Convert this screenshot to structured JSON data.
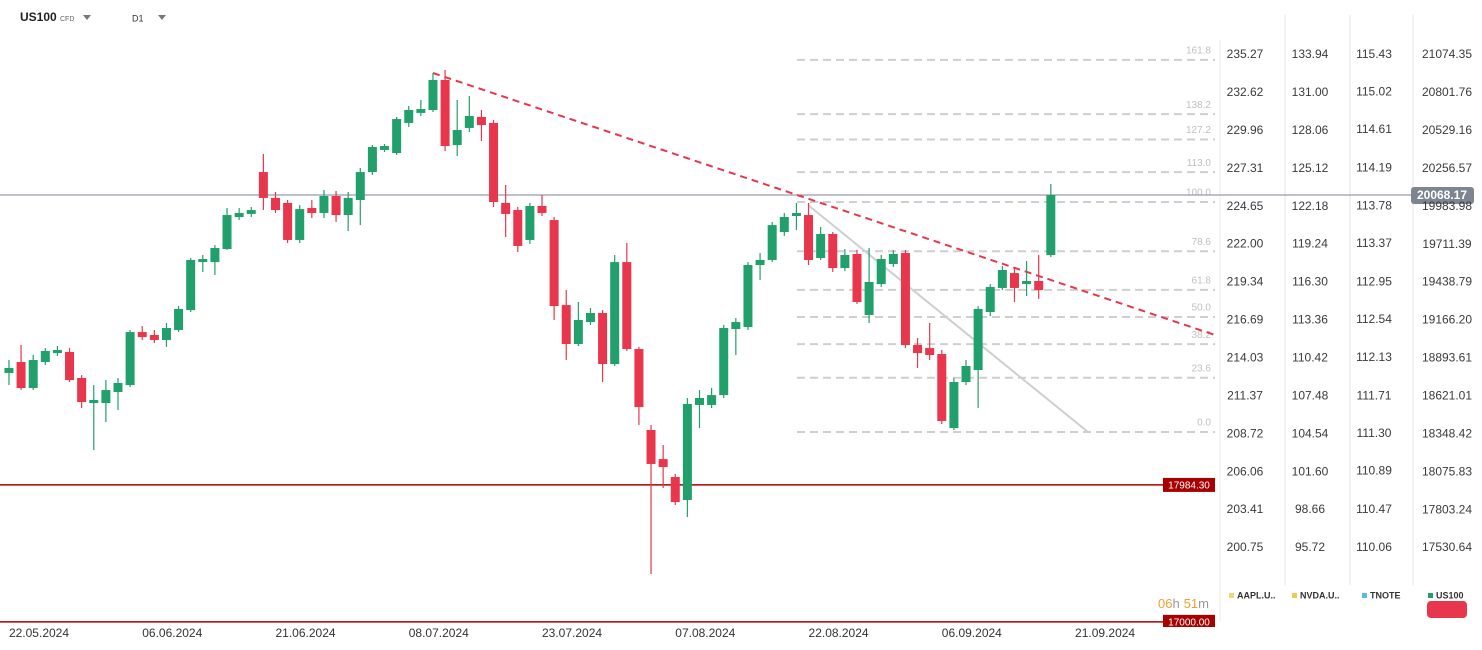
{
  "chart_data": {
    "type": "candlestick",
    "symbol": "US100",
    "symbol_kind": "CFD",
    "timeframe": "D1",
    "up_color": "#22a06b",
    "down_color": "#e8364c",
    "xlim": [
      -0.74,
      99.8
    ],
    "xticks": [
      {
        "value": 0,
        "label": "22.05.2024"
      },
      {
        "value": 11,
        "label": "06.06.2024"
      },
      {
        "value": 22,
        "label": "21.06.2024"
      },
      {
        "value": 33,
        "label": "08.07.2024"
      },
      {
        "value": 44,
        "label": "23.07.2024"
      },
      {
        "value": 55,
        "label": "07.08.2024"
      },
      {
        "value": 66,
        "label": "22.08.2024"
      },
      {
        "value": 77,
        "label": "06.09.2024"
      },
      {
        "value": 88,
        "label": "21.09.2024"
      }
    ],
    "ylim": [
      16999,
      21182.2
    ],
    "yticks": [
      21074.35,
      20801.76,
      20529.16,
      20256.57,
      19983.98,
      19711.39,
      19438.79,
      {
        "value": 19166.2,
        "label": "19166.20"
      },
      18893.61,
      18621.01,
      18348.42,
      18075.83,
      17803.24,
      17530.64
    ],
    "compare_axes": [
      {
        "name": "AAPL.U..",
        "color": "#f0d77a",
        "ylim": [
          195.57,
          236.32
        ],
        "yticks": [
          235.27,
          232.62,
          229.96,
          227.31,
          224.65,
          {
            "value": 222,
            "label": "222.00"
          },
          219.34,
          216.69,
          214.03,
          211.37,
          208.72,
          206.06,
          203.41,
          200.75
        ]
      },
      {
        "name": "NVDA.U..",
        "color": "#f2c94c",
        "ylim": [
          89.98,
          135.1
        ],
        "yticks": [
          133.94,
          {
            "value": 131,
            "label": "131.00"
          },
          128.06,
          125.12,
          122.18,
          119.24,
          {
            "value": 116.3,
            "label": "116.30"
          },
          113.36,
          110.42,
          107.48,
          104.54,
          {
            "value": 101.6,
            "label": "101.60"
          },
          98.66,
          95.72
        ]
      },
      {
        "name": "TNOTE",
        "color": "#5bb8e8",
        "ylim": [
          109.25,
          115.59
        ],
        "yticks": [
          115.43,
          115.02,
          114.61,
          114.19,
          113.78,
          113.37,
          112.95,
          112.54,
          112.13,
          111.71,
          {
            "value": 111.3,
            "label": "111.30"
          },
          110.89,
          110.47,
          110.06
        ]
      }
    ],
    "ohlc": {
      "open": [
        18789,
        18868,
        18681,
        18868,
        18932,
        18940,
        18753,
        18573,
        18573,
        18652,
        18702,
        19083,
        19062,
        19026,
        19098,
        19241,
        19586,
        19586,
        19680,
        19910,
        19932,
        20233,
        20047,
        20011,
        19745,
        19975,
        19939,
        20061,
        19924,
        20032,
        20233,
        20392,
        20370,
        20586,
        20658,
        20679,
        20895,
        20427,
        20550,
        20629,
        20586,
        20011,
        19960,
        19745,
        19989,
        19888,
        19277,
        18997,
        19155,
        19220,
        18853,
        19586,
        18961,
        18379,
        18170,
        18041,
        17876,
        18559,
        18559,
        18630,
        19105,
        19119,
        19565,
        19601,
        19802,
        19917,
        19924,
        19615,
        19788,
        19543,
        19644,
        19206,
        19428,
        19572,
        19651,
        18990,
        18968,
        18925,
        18393,
        18724,
        18810,
        19227,
        19400,
        19507,
        19428,
        19450,
        19637
      ],
      "high": [
        18882,
        18990,
        18918,
        18968,
        18983,
        18968,
        18774,
        18702,
        18738,
        18753,
        19098,
        19126,
        19098,
        19148,
        19270,
        19615,
        19637,
        19709,
        19975,
        19975,
        19982,
        20363,
        20090,
        20032,
        19996,
        20032,
        20104,
        20097,
        20090,
        20262,
        20427,
        20435,
        20629,
        20708,
        20751,
        20945,
        20967,
        20751,
        20780,
        20679,
        20607,
        20140,
        19982,
        20011,
        20068,
        19910,
        19385,
        19299,
        19256,
        19241,
        19637,
        19723,
        18976,
        18415,
        18271,
        18063,
        18609,
        18666,
        18681,
        19134,
        19184,
        19586,
        19651,
        19874,
        19939,
        20011,
        20011,
        19838,
        19802,
        19680,
        19673,
        19687,
        19637,
        19673,
        19673,
        19040,
        19148,
        18954,
        18753,
        18882,
        19270,
        19428,
        19558,
        19543,
        19594,
        19637,
        20147
      ],
      "low": [
        18702,
        18666,
        18666,
        18846,
        18911,
        18724,
        18537,
        18235,
        18436,
        18523,
        18688,
        19026,
        19004,
        18976,
        19083,
        19227,
        19515,
        19493,
        19673,
        19888,
        19910,
        19960,
        19939,
        19723,
        19723,
        19903,
        19903,
        19874,
        19809,
        19852,
        20212,
        20377,
        20356,
        20557,
        20636,
        20665,
        20384,
        20348,
        20521,
        20456,
        19982,
        19766,
        19658,
        19716,
        19917,
        19170,
        18882,
        18983,
        19134,
        18724,
        18839,
        18947,
        18415,
        17344,
        17962,
        17840,
        17754,
        18393,
        18537,
        18609,
        18918,
        19098,
        19457,
        19586,
        19773,
        19817,
        19565,
        19601,
        19515,
        19522,
        19285,
        19148,
        19407,
        19551,
        18968,
        18825,
        18882,
        18422,
        18379,
        18702,
        18537,
        19198,
        19385,
        19299,
        19342,
        19321,
        19622
      ],
      "close": [
        18825,
        18681,
        18882,
        18947,
        18954,
        18738,
        18580,
        18595,
        18666,
        18717,
        19083,
        19047,
        19026,
        19112,
        19249,
        19601,
        19608,
        19687,
        19924,
        19939,
        19960,
        20047,
        19960,
        19745,
        19967,
        19939,
        20061,
        19924,
        20047,
        20233,
        20413,
        20420,
        20614,
        20679,
        20686,
        20895,
        20420,
        20535,
        20636,
        20571,
        20018,
        19932,
        19702,
        19989,
        19939,
        19270,
        18997,
        19170,
        19220,
        18853,
        19586,
        18961,
        18544,
        18135,
        18113,
        17861,
        18566,
        18609,
        18630,
        19112,
        19155,
        19565,
        19601,
        19852,
        19910,
        19939,
        19601,
        19788,
        19543,
        19637,
        19299,
        19443,
        19608,
        19644,
        18990,
        18932,
        18918,
        18444,
        18724,
        18839,
        19249,
        19407,
        19529,
        19400,
        19450,
        19385,
        20068
      ]
    },
    "price_lines": [
      {
        "value": 20068.17,
        "color": "#7d8590"
      },
      {
        "value": 17984.3,
        "label": "17984.30",
        "color": "#a80000"
      },
      {
        "value": 17000,
        "label": "17000.00",
        "color": "#a80000"
      }
    ],
    "fibonacci": {
      "low": 18364.5,
      "high": 20017.7,
      "color": "#cfcfcf",
      "levels": [
        161.8,
        138.2,
        127.2,
        {
          "value": 113,
          "label": "113.0"
        },
        {
          "value": 100,
          "label": "100.0"
        },
        78.6,
        61.8,
        {
          "value": 50,
          "label": "50.0"
        },
        38.2,
        23.6,
        {
          "value": 0,
          "label": "0.0"
        }
      ]
    },
    "countdown": [
      "06",
      "h",
      "51",
      "m"
    ]
  }
}
